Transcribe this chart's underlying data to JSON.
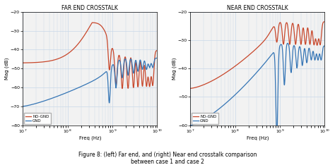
{
  "title_left": "FAR END CROSSTALK",
  "title_right": "NEAR END CROSSTALK",
  "xlabel": "Freq (Hz)",
  "ylabel_left": "Mag (dB)",
  "ylabel_right": "Mag (dB)",
  "caption": "Figure 8: (left) Far end, and (right) Near end crosstalk comparison\nbetween case 1 and case 2",
  "xlim": [
    10000000.0,
    10000000000.0
  ],
  "ylim_left": [
    -80,
    -20
  ],
  "ylim_right": [
    -60,
    -20
  ],
  "yticks_left": [
    -80,
    -70,
    -60,
    -50,
    -40,
    -30,
    -20
  ],
  "yticks_right": [
    -60,
    -50,
    -40,
    -30,
    -20
  ],
  "color_nognd": "#c8472b",
  "color_gnd": "#3575b5",
  "legend_labels": [
    "NO-GND",
    "GND"
  ],
  "bg_color": "#f2f2f2",
  "grid_color": "#c8d8e8",
  "caption_fontsize": 5.5
}
